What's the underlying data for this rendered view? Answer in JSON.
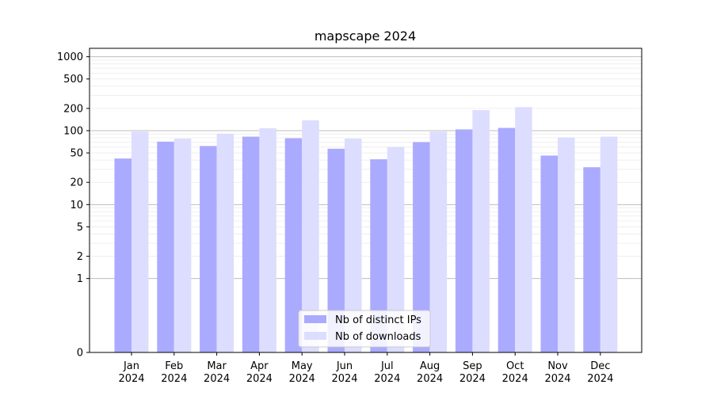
{
  "chart_data": {
    "type": "bar",
    "title": "mapscape 2024",
    "xlabel": "",
    "ylabel": "",
    "y_scale": "symlog",
    "ylim": [
      0,
      1300
    ],
    "y_ticks": [
      {
        "value": 0,
        "label": "0"
      },
      {
        "value": 1,
        "label": "1"
      },
      {
        "value": 2,
        "label": "2"
      },
      {
        "value": 5,
        "label": "5"
      },
      {
        "value": 10,
        "label": "10"
      },
      {
        "value": 20,
        "label": "20"
      },
      {
        "value": 50,
        "label": "50"
      },
      {
        "value": 100,
        "label": "100"
      },
      {
        "value": 200,
        "label": "200"
      },
      {
        "value": 500,
        "label": "500"
      },
      {
        "value": 1000,
        "label": "1000"
      }
    ],
    "categories": [
      [
        "Jan",
        "2024"
      ],
      [
        "Feb",
        "2024"
      ],
      [
        "Mar",
        "2024"
      ],
      [
        "Apr",
        "2024"
      ],
      [
        "May",
        "2024"
      ],
      [
        "Jun",
        "2024"
      ],
      [
        "Jul",
        "2024"
      ],
      [
        "Aug",
        "2024"
      ],
      [
        "Sep",
        "2024"
      ],
      [
        "Oct",
        "2024"
      ],
      [
        "Nov",
        "2024"
      ],
      [
        "Dec",
        "2024"
      ]
    ],
    "series": [
      {
        "name": "Nb of distinct IPs",
        "color": "#aaaaff",
        "values": [
          42,
          71,
          62,
          83,
          79,
          57,
          41,
          70,
          104,
          109,
          46,
          32
        ]
      },
      {
        "name": "Nb of downloads",
        "color": "#ddddff",
        "values": [
          97,
          78,
          91,
          108,
          138,
          78,
          60,
          97,
          190,
          208,
          81,
          83
        ]
      }
    ],
    "grid": true,
    "legend_position": "lower-center"
  }
}
